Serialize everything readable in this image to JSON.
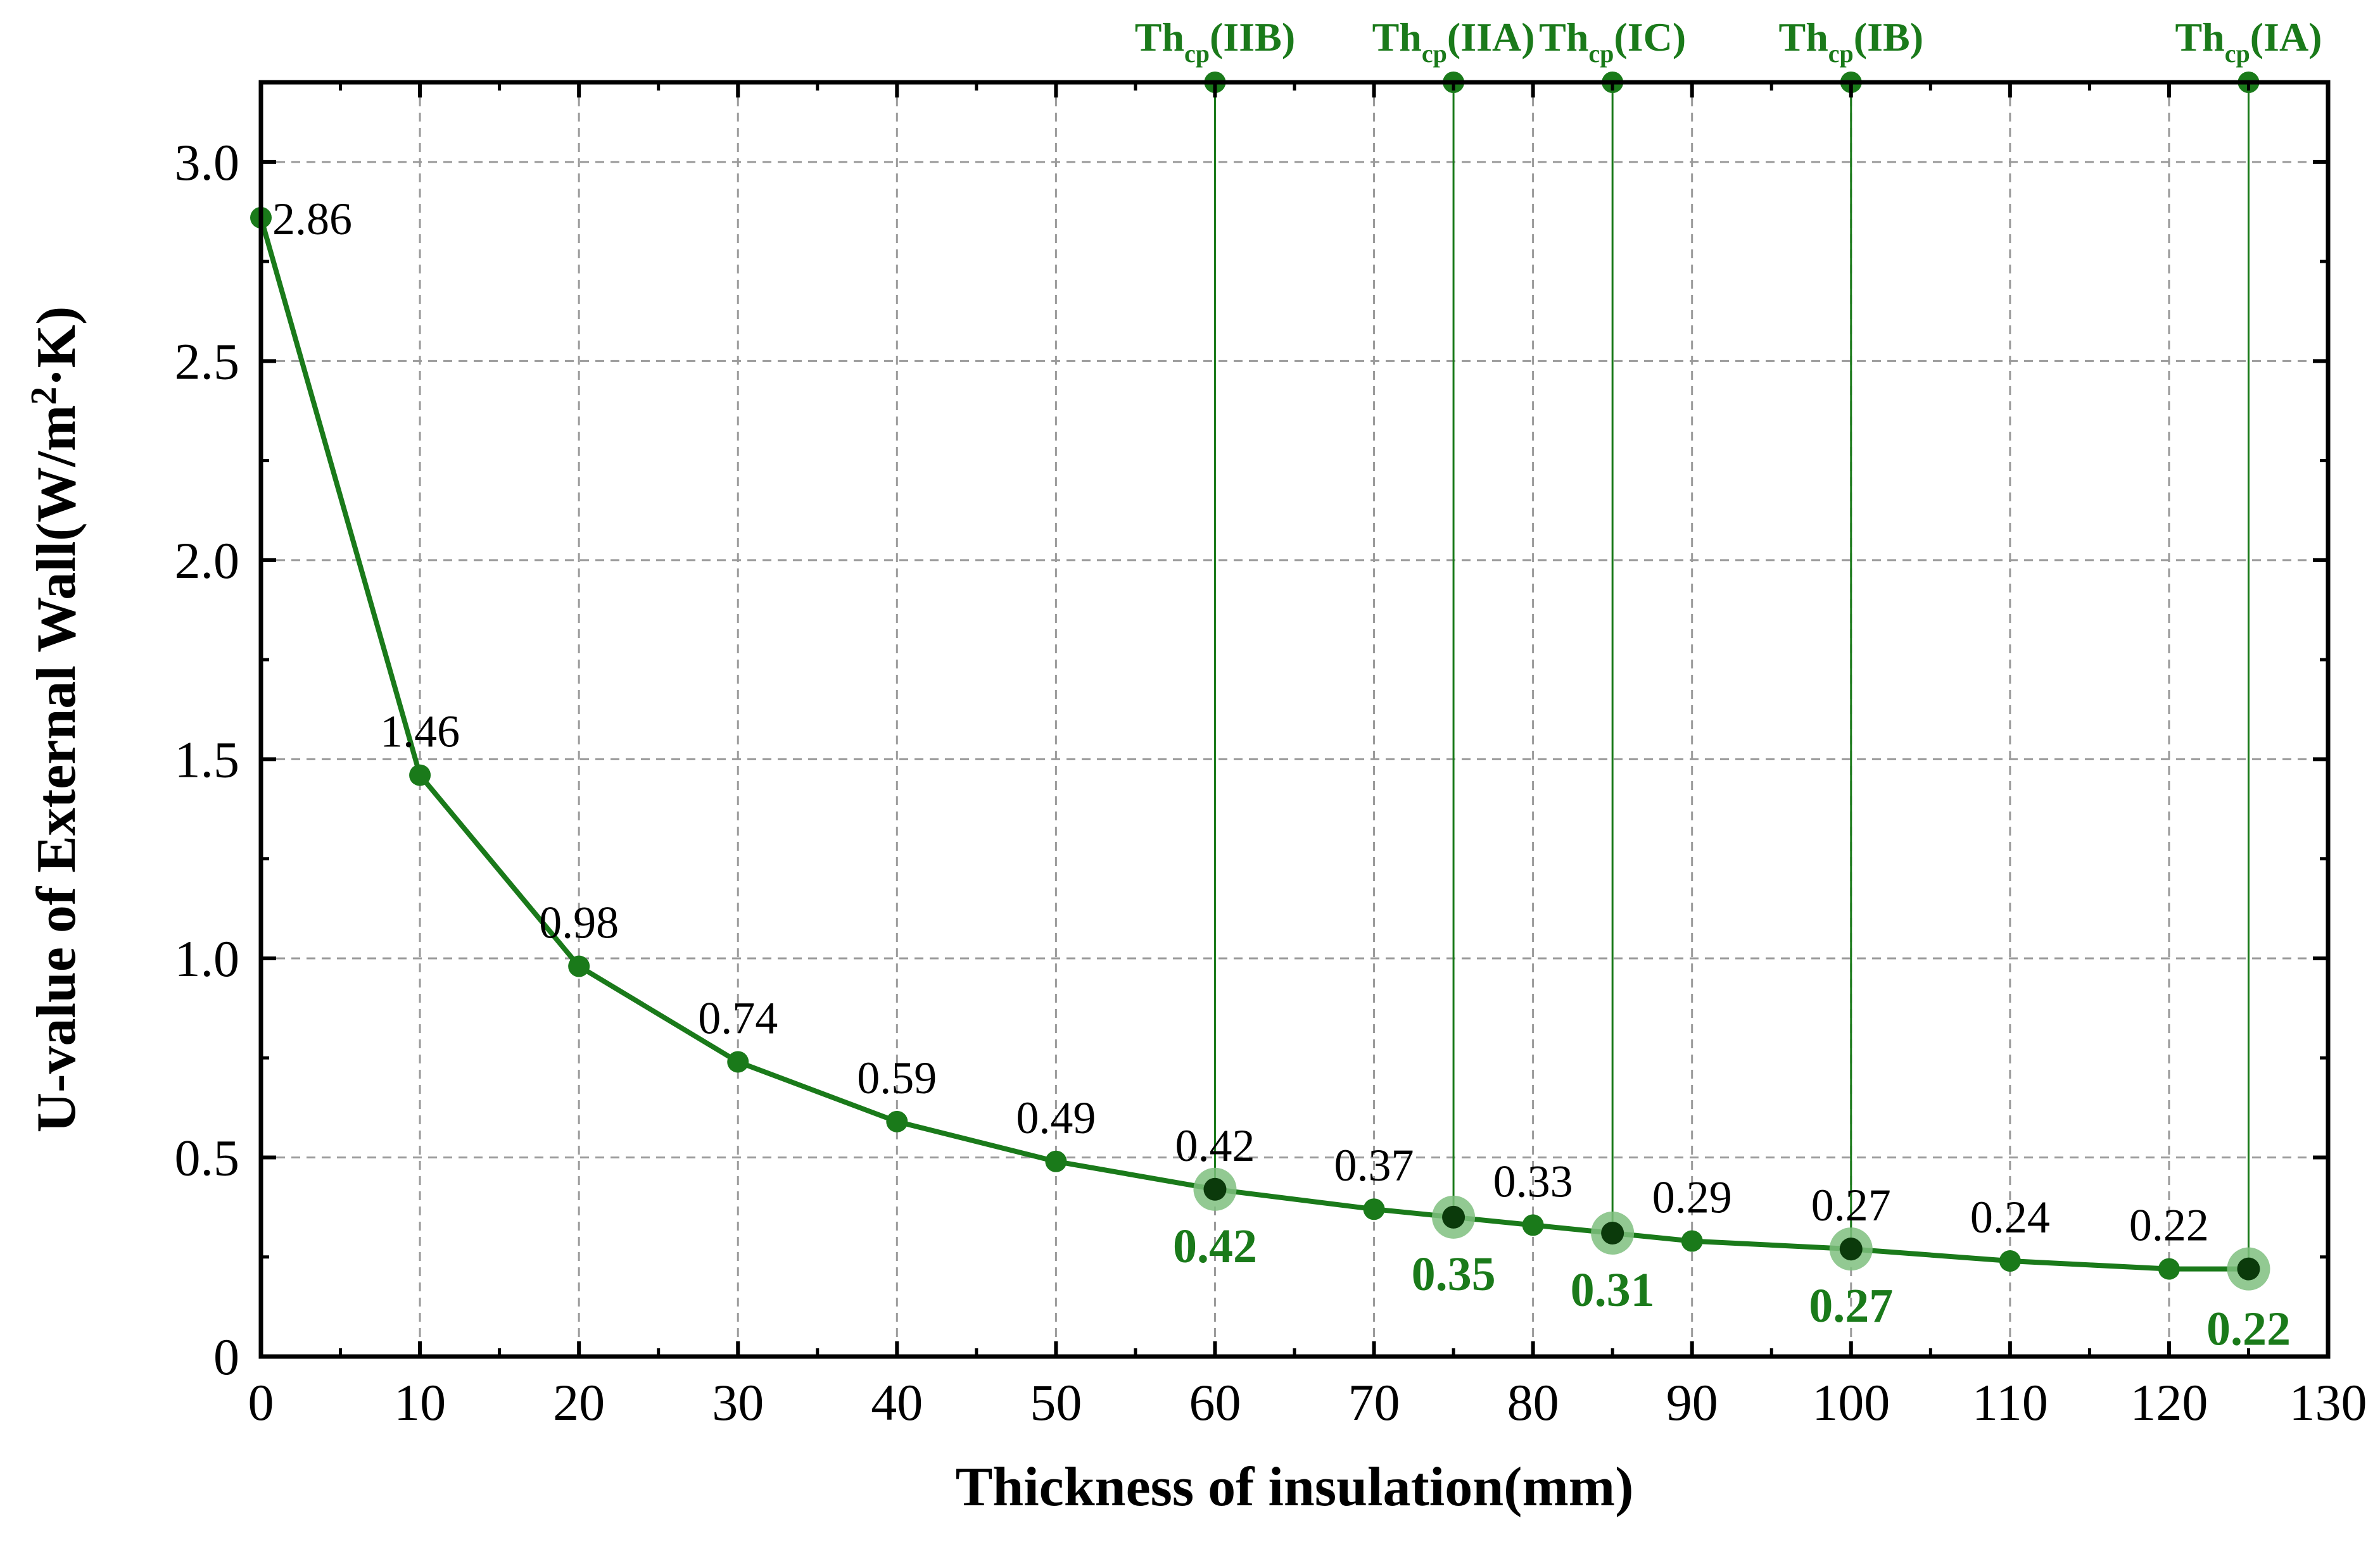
{
  "chart_data": {
    "type": "line",
    "xlabel": "Thickness of insulation(mm)",
    "ylabel_parts": {
      "main": "U-value of External Wall(W/m",
      "sup": "2",
      "tail": "·K)"
    },
    "xlim": [
      0,
      130
    ],
    "ylim": [
      0,
      3.2
    ],
    "x_ticks": [
      0,
      10,
      20,
      30,
      40,
      50,
      60,
      70,
      80,
      90,
      100,
      110,
      120,
      130
    ],
    "y_ticks": [
      0,
      0.5,
      1.0,
      1.5,
      2.0,
      2.5,
      3.0
    ],
    "y_tick_labels": [
      "0",
      "0.5",
      "1.0",
      "1.5",
      "2.0",
      "2.5",
      "3.0"
    ],
    "grid": true,
    "series": [
      {
        "name": "U-value",
        "color": "#1a7a1a",
        "x": [
          0,
          10,
          20,
          30,
          40,
          50,
          60,
          70,
          75,
          80,
          85,
          90,
          100,
          110,
          120,
          125
        ],
        "y": [
          2.86,
          1.46,
          0.98,
          0.74,
          0.59,
          0.49,
          0.42,
          0.37,
          0.35,
          0.33,
          0.31,
          0.29,
          0.27,
          0.24,
          0.22,
          0.22
        ]
      }
    ],
    "point_labels": [
      {
        "x": 0,
        "y": 2.86,
        "text": "2.86"
      },
      {
        "x": 10,
        "y": 1.46,
        "text": "1.46"
      },
      {
        "x": 20,
        "y": 0.98,
        "text": "0.98"
      },
      {
        "x": 30,
        "y": 0.74,
        "text": "0.74"
      },
      {
        "x": 40,
        "y": 0.59,
        "text": "0.59"
      },
      {
        "x": 50,
        "y": 0.49,
        "text": "0.49"
      },
      {
        "x": 60,
        "y": 0.42,
        "text": "0.42"
      },
      {
        "x": 70,
        "y": 0.37,
        "text": "0.37"
      },
      {
        "x": 80,
        "y": 0.33,
        "text": "0.33"
      },
      {
        "x": 90,
        "y": 0.29,
        "text": "0.29"
      },
      {
        "x": 100,
        "y": 0.27,
        "text": "0.27"
      },
      {
        "x": 110,
        "y": 0.24,
        "text": "0.24"
      },
      {
        "x": 120,
        "y": 0.22,
        "text": "0.22"
      }
    ],
    "critical_points": [
      {
        "x": 60,
        "y": 0.42,
        "value_text": "0.42",
        "label_main": "Th",
        "label_sub": "cp",
        "label_tail": "(IIB)"
      },
      {
        "x": 75,
        "y": 0.35,
        "value_text": "0.35",
        "label_main": "Th",
        "label_sub": "cp",
        "label_tail": "(IIA)"
      },
      {
        "x": 85,
        "y": 0.31,
        "value_text": "0.31",
        "label_main": "Th",
        "label_sub": "cp",
        "label_tail": "(IC)"
      },
      {
        "x": 100,
        "y": 0.27,
        "value_text": "0.27",
        "label_main": "Th",
        "label_sub": "cp",
        "label_tail": "(IB)"
      },
      {
        "x": 125,
        "y": 0.22,
        "value_text": "0.22",
        "label_main": "Th",
        "label_sub": "cp",
        "label_tail": "(IA)"
      }
    ],
    "colors": {
      "line": "#1a7a1a",
      "highlight": "#1a7a1a",
      "halo": "#7fbf7f",
      "grid": "#9a9a9a",
      "axis": "#000000"
    }
  }
}
